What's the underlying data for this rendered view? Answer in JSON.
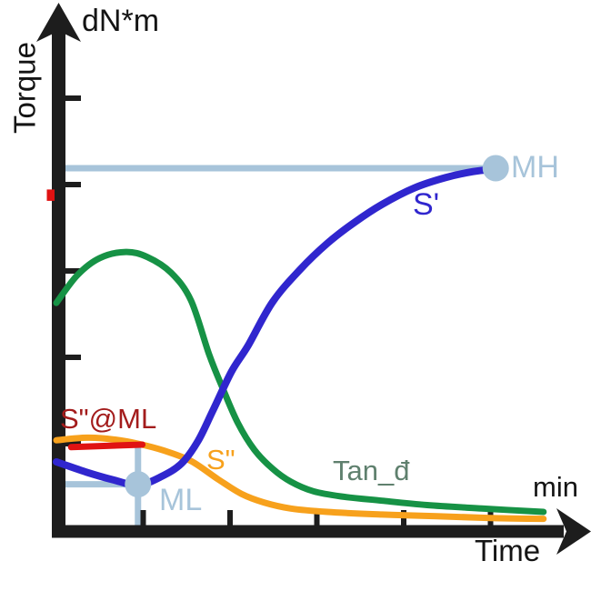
{
  "colors": {
    "axis": "#1d1d1d",
    "s_prime_blue": "#3026ce",
    "s_double_prime_orange": "#f7a11c",
    "tan_delta_green": "#169245",
    "tan_delta_label_green": "#5f806e",
    "light_blue_annotation": "#a7c4da",
    "dark_red_label": "#a31c1c",
    "red_line": "#e01212",
    "background": "#ffffff"
  },
  "labels": {
    "y_unit": "dN*m",
    "y_title": "Torque",
    "x_unit": "min",
    "x_title": "Time",
    "mh": "MH",
    "ml": "ML",
    "s_prime": "S'",
    "s_double_prime": "S\"",
    "s_double_prime_at_ml": "S\"@ML",
    "tan_delta": "Tan_đ"
  },
  "chart_data": {
    "type": "line",
    "title": "",
    "xlabel": "Time",
    "x_unit_label": "min",
    "ylabel": "Torque",
    "y_unit_label": "dN*m",
    "xlim": [
      0,
      6.15
    ],
    "ylim": [
      0,
      6.1
    ],
    "grid": false,
    "x_ticks": [
      1,
      2,
      3,
      4,
      5
    ],
    "y_ticks": [
      1,
      2,
      3,
      4,
      5
    ],
    "legend_position": "inline-curve-labels",
    "series": [
      {
        "name": "Tan_đ",
        "color": "#169245",
        "width": 7,
        "points": [
          [
            0,
            2.63
          ],
          [
            0.24,
            2.95
          ],
          [
            0.5,
            3.15
          ],
          [
            0.8,
            3.22
          ],
          [
            1.05,
            3.16
          ],
          [
            1.32,
            2.98
          ],
          [
            1.55,
            2.66
          ],
          [
            1.76,
            2.03
          ],
          [
            1.92,
            1.63
          ],
          [
            2.09,
            1.24
          ],
          [
            2.28,
            0.93
          ],
          [
            2.49,
            0.71
          ],
          [
            2.7,
            0.56
          ],
          [
            2.96,
            0.45
          ],
          [
            3.28,
            0.39
          ],
          [
            3.75,
            0.34
          ],
          [
            4.27,
            0.29
          ],
          [
            4.9,
            0.25
          ],
          [
            5.61,
            0.21
          ]
        ]
      },
      {
        "name": "S\"",
        "color": "#f7a11c",
        "width": 7,
        "points": [
          [
            0,
            1.04
          ],
          [
            0.35,
            1.07
          ],
          [
            0.66,
            1.05
          ],
          [
            0.94,
            1.0
          ],
          [
            1.24,
            0.92
          ],
          [
            1.55,
            0.8
          ],
          [
            1.86,
            0.59
          ],
          [
            2.13,
            0.42
          ],
          [
            2.39,
            0.32
          ],
          [
            2.7,
            0.25
          ],
          [
            3.12,
            0.21
          ],
          [
            3.75,
            0.18
          ],
          [
            4.38,
            0.16
          ],
          [
            5.0,
            0.14
          ],
          [
            5.61,
            0.13
          ]
        ]
      },
      {
        "name": "S\"@ML",
        "color": "#e01212",
        "width": 7,
        "points": [
          [
            0.17,
            0.96
          ],
          [
            0.99,
            0.99
          ]
        ]
      },
      {
        "name": "S'",
        "color": "#3026ce",
        "width": 8,
        "points": [
          [
            0,
            0.79
          ],
          [
            0.35,
            0.67
          ],
          [
            0.66,
            0.58
          ],
          [
            0.94,
            0.52
          ],
          [
            1.21,
            0.62
          ],
          [
            1.44,
            0.77
          ],
          [
            1.63,
            1.03
          ],
          [
            1.81,
            1.4
          ],
          [
            2.02,
            1.84
          ],
          [
            2.21,
            2.14
          ],
          [
            2.49,
            2.64
          ],
          [
            2.81,
            3.02
          ],
          [
            3.12,
            3.32
          ],
          [
            3.43,
            3.56
          ],
          [
            3.75,
            3.77
          ],
          [
            4.12,
            3.96
          ],
          [
            4.48,
            4.08
          ],
          [
            4.8,
            4.15
          ],
          [
            5.06,
            4.18
          ]
        ]
      }
    ],
    "annotations": {
      "mh": {
        "label": "MH",
        "marker_point": [
          5.06,
          4.19
        ],
        "hline_u": 4.19,
        "hline_t_range": [
          0,
          5.06
        ],
        "color": "#a7c4da"
      },
      "ml": {
        "label": "ML",
        "marker_point": [
          0.94,
          0.53
        ],
        "hline_u": 0.53,
        "hline_t_range": [
          0,
          0.94
        ],
        "vline_t": 0.94,
        "vline_u_range": [
          -0.02,
          0.98
        ],
        "color": "#a7c4da"
      },
      "red_axis_mark": {
        "u": 3.88,
        "color": "#e01212"
      }
    }
  }
}
